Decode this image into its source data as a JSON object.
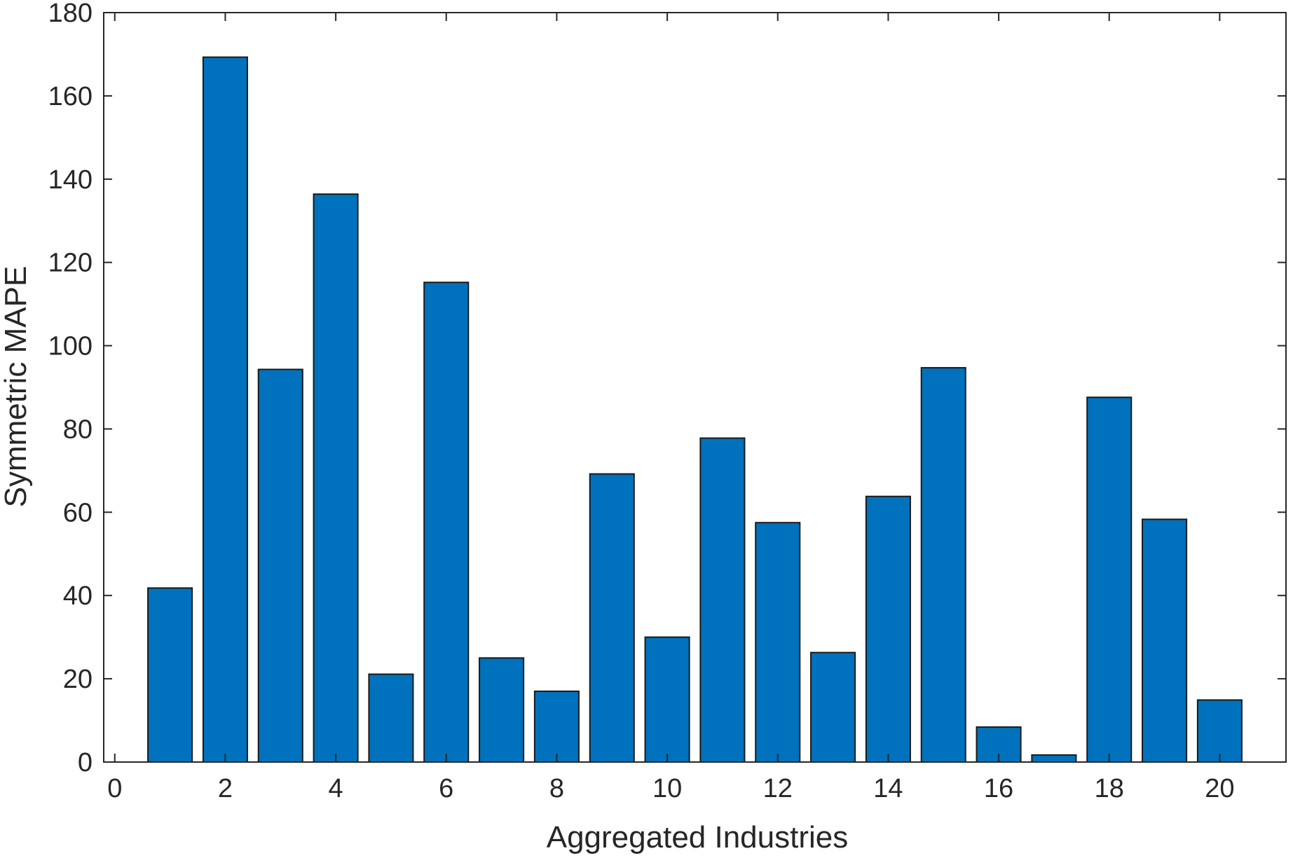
{
  "chart_data": {
    "type": "bar",
    "title": "",
    "xlabel": "Aggregated Industries",
    "ylabel": "Symmetric MAPE",
    "x": [
      1,
      2,
      3,
      4,
      5,
      6,
      7,
      8,
      9,
      10,
      11,
      12,
      13,
      14,
      15,
      16,
      17,
      18,
      19,
      20
    ],
    "values": [
      41.8,
      169.3,
      94.3,
      136.4,
      21.1,
      115.2,
      25.0,
      17.0,
      69.2,
      30.0,
      77.8,
      57.5,
      26.3,
      63.8,
      94.7,
      8.4,
      1.7,
      87.6,
      58.3,
      14.9
    ],
    "xlim": [
      -0.2,
      21.2
    ],
    "ylim": [
      0,
      180
    ],
    "xticks": [
      0,
      2,
      4,
      6,
      8,
      10,
      12,
      14,
      16,
      18,
      20
    ],
    "yticks": [
      0,
      20,
      40,
      60,
      80,
      100,
      120,
      140,
      160,
      180
    ],
    "bar_color": "#0072bd",
    "grid": false,
    "legend": "none"
  }
}
